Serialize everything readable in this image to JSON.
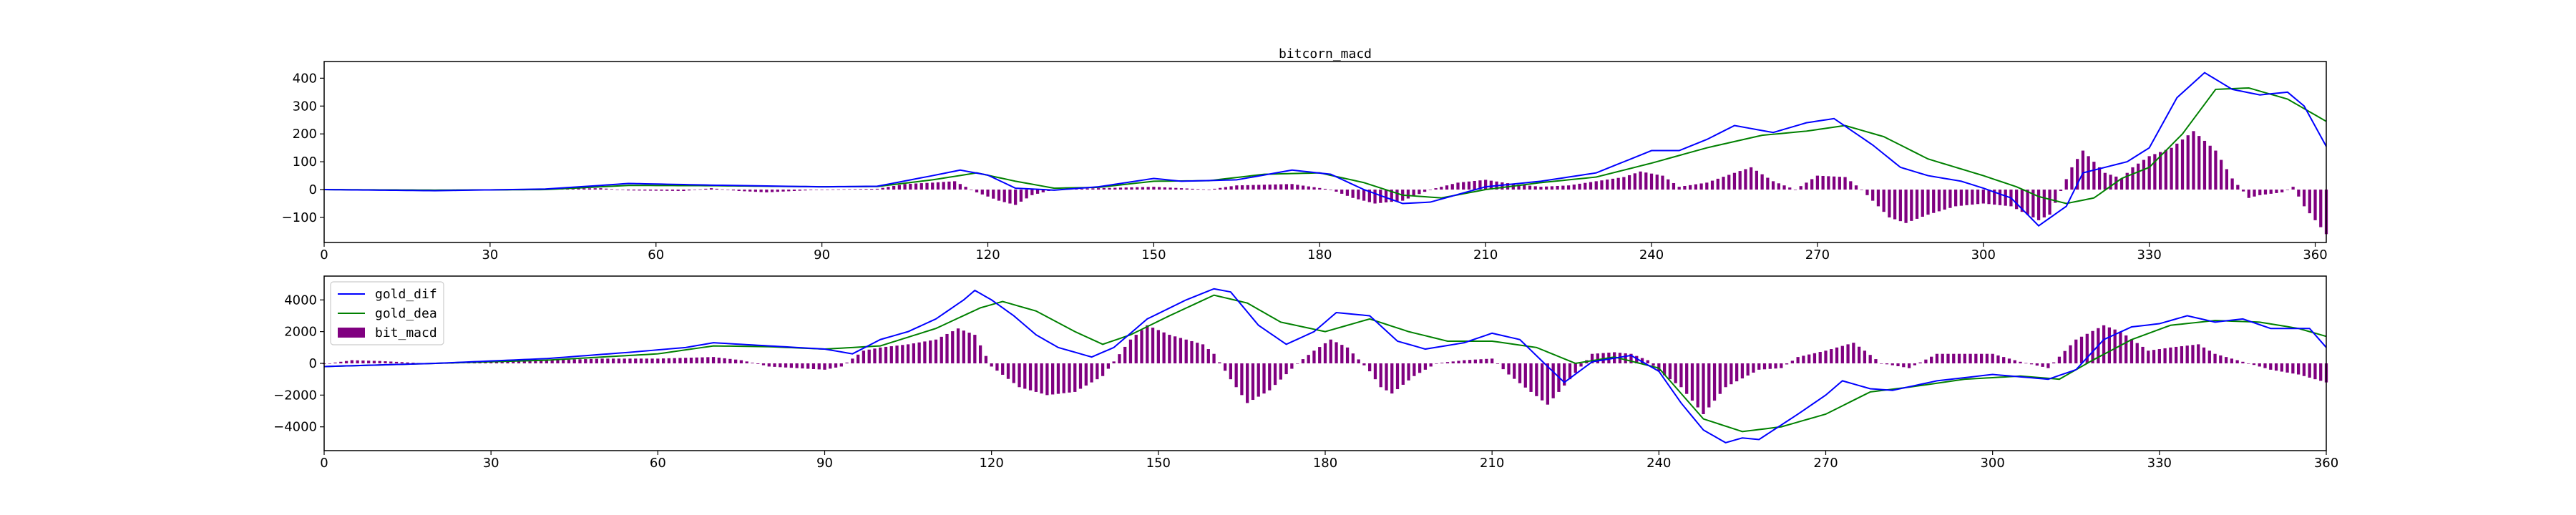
{
  "chart_data": [
    {
      "id": "bitcorn",
      "type": "line",
      "title": "bitcorn_macd",
      "xlabel": "",
      "ylabel": "",
      "xlim": [
        0,
        362
      ],
      "ylim": [
        -190,
        460
      ],
      "xticks": [
        0,
        30,
        60,
        90,
        120,
        150,
        180,
        210,
        240,
        270,
        300,
        330,
        360
      ],
      "yticks": [
        -100,
        0,
        100,
        200,
        300,
        400
      ],
      "grid": false,
      "legend": null,
      "colors": {
        "dif": "#0000ff",
        "dea": "#008000",
        "macd": "#800080"
      },
      "dif_keypoints": [
        [
          0,
          0
        ],
        [
          20,
          -4
        ],
        [
          40,
          2
        ],
        [
          50,
          15
        ],
        [
          55,
          22
        ],
        [
          70,
          16
        ],
        [
          90,
          10
        ],
        [
          100,
          12
        ],
        [
          110,
          50
        ],
        [
          115,
          70
        ],
        [
          120,
          52
        ],
        [
          125,
          5
        ],
        [
          132,
          -2
        ],
        [
          140,
          10
        ],
        [
          150,
          40
        ],
        [
          155,
          30
        ],
        [
          165,
          35
        ],
        [
          175,
          70
        ],
        [
          182,
          55
        ],
        [
          188,
          0
        ],
        [
          195,
          -50
        ],
        [
          200,
          -45
        ],
        [
          210,
          10
        ],
        [
          220,
          30
        ],
        [
          230,
          60
        ],
        [
          240,
          140
        ],
        [
          245,
          140
        ],
        [
          250,
          180
        ],
        [
          255,
          230
        ],
        [
          262,
          205
        ],
        [
          268,
          240
        ],
        [
          273,
          255
        ],
        [
          280,
          160
        ],
        [
          285,
          80
        ],
        [
          290,
          50
        ],
        [
          296,
          30
        ],
        [
          300,
          5
        ],
        [
          305,
          -30
        ],
        [
          310,
          -130
        ],
        [
          315,
          -60
        ],
        [
          318,
          60
        ],
        [
          322,
          80
        ],
        [
          326,
          100
        ],
        [
          330,
          150
        ],
        [
          335,
          330
        ],
        [
          340,
          420
        ],
        [
          345,
          360
        ],
        [
          350,
          340
        ],
        [
          355,
          350
        ],
        [
          358,
          300
        ],
        [
          362,
          155
        ]
      ],
      "dea_keypoints": [
        [
          0,
          0
        ],
        [
          20,
          -2
        ],
        [
          40,
          0
        ],
        [
          55,
          15
        ],
        [
          70,
          14
        ],
        [
          90,
          10
        ],
        [
          100,
          11
        ],
        [
          110,
          35
        ],
        [
          118,
          60
        ],
        [
          125,
          30
        ],
        [
          132,
          5
        ],
        [
          140,
          8
        ],
        [
          150,
          30
        ],
        [
          160,
          32
        ],
        [
          170,
          55
        ],
        [
          180,
          60
        ],
        [
          188,
          25
        ],
        [
          195,
          -20
        ],
        [
          202,
          -30
        ],
        [
          210,
          0
        ],
        [
          220,
          25
        ],
        [
          230,
          45
        ],
        [
          240,
          95
        ],
        [
          250,
          150
        ],
        [
          260,
          195
        ],
        [
          268,
          210
        ],
        [
          275,
          230
        ],
        [
          282,
          190
        ],
        [
          290,
          110
        ],
        [
          300,
          50
        ],
        [
          306,
          10
        ],
        [
          310,
          -25
        ],
        [
          315,
          -50
        ],
        [
          320,
          -30
        ],
        [
          325,
          40
        ],
        [
          330,
          80
        ],
        [
          336,
          200
        ],
        [
          342,
          360
        ],
        [
          348,
          365
        ],
        [
          355,
          325
        ],
        [
          362,
          245
        ]
      ],
      "macd_keypoints": [
        [
          0,
          0
        ],
        [
          20,
          -5
        ],
        [
          40,
          3
        ],
        [
          50,
          5
        ],
        [
          55,
          -3
        ],
        [
          65,
          -5
        ],
        [
          70,
          5
        ],
        [
          75,
          -5
        ],
        [
          80,
          -10
        ],
        [
          90,
          0
        ],
        [
          100,
          3
        ],
        [
          105,
          20
        ],
        [
          110,
          25
        ],
        [
          114,
          30
        ],
        [
          118,
          -10
        ],
        [
          122,
          -40
        ],
        [
          125,
          -55
        ],
        [
          128,
          -20
        ],
        [
          132,
          0
        ],
        [
          140,
          5
        ],
        [
          150,
          10
        ],
        [
          155,
          5
        ],
        [
          160,
          0
        ],
        [
          165,
          15
        ],
        [
          175,
          20
        ],
        [
          182,
          0
        ],
        [
          186,
          -30
        ],
        [
          190,
          -50
        ],
        [
          195,
          -40
        ],
        [
          200,
          0
        ],
        [
          205,
          25
        ],
        [
          210,
          35
        ],
        [
          215,
          20
        ],
        [
          220,
          10
        ],
        [
          225,
          15
        ],
        [
          230,
          30
        ],
        [
          235,
          45
        ],
        [
          238,
          65
        ],
        [
          242,
          50
        ],
        [
          245,
          10
        ],
        [
          250,
          25
        ],
        [
          255,
          60
        ],
        [
          258,
          80
        ],
        [
          262,
          30
        ],
        [
          266,
          0
        ],
        [
          270,
          50
        ],
        [
          275,
          45
        ],
        [
          278,
          0
        ],
        [
          283,
          -100
        ],
        [
          286,
          -120
        ],
        [
          290,
          -90
        ],
        [
          295,
          -60
        ],
        [
          300,
          -50
        ],
        [
          305,
          -60
        ],
        [
          310,
          -110
        ],
        [
          312,
          -90
        ],
        [
          316,
          80
        ],
        [
          318,
          140
        ],
        [
          320,
          100
        ],
        [
          322,
          60
        ],
        [
          325,
          40
        ],
        [
          327,
          80
        ],
        [
          330,
          120
        ],
        [
          334,
          150
        ],
        [
          338,
          210
        ],
        [
          342,
          140
        ],
        [
          345,
          40
        ],
        [
          348,
          -30
        ],
        [
          350,
          -20
        ],
        [
          354,
          -10
        ],
        [
          356,
          10
        ],
        [
          358,
          -60
        ],
        [
          362,
          -160
        ]
      ]
    },
    {
      "id": "gold",
      "type": "line",
      "title": "",
      "xlabel": "",
      "ylabel": "",
      "xlim": [
        0,
        360
      ],
      "ylim": [
        -5500,
        5500
      ],
      "xticks": [
        0,
        30,
        60,
        90,
        120,
        150,
        180,
        210,
        240,
        270,
        300,
        330,
        360
      ],
      "yticks": [
        -4000,
        -2000,
        0,
        2000,
        4000
      ],
      "grid": false,
      "legend": "top-left",
      "legend_entries": {
        "dif": "gold_dif",
        "dea": "gold_dea",
        "macd": "bit_macd"
      },
      "colors": {
        "dif": "#0000ff",
        "dea": "#008000",
        "macd": "#800080"
      },
      "dif_keypoints": [
        [
          0,
          -200
        ],
        [
          20,
          0
        ],
        [
          40,
          300
        ],
        [
          55,
          700
        ],
        [
          65,
          1000
        ],
        [
          70,
          1300
        ],
        [
          80,
          1100
        ],
        [
          90,
          900
        ],
        [
          95,
          600
        ],
        [
          100,
          1500
        ],
        [
          105,
          2000
        ],
        [
          110,
          2800
        ],
        [
          115,
          4000
        ],
        [
          117,
          4600
        ],
        [
          120,
          4000
        ],
        [
          124,
          3000
        ],
        [
          128,
          1800
        ],
        [
          132,
          1000
        ],
        [
          138,
          400
        ],
        [
          142,
          1000
        ],
        [
          148,
          2800
        ],
        [
          155,
          4000
        ],
        [
          160,
          4700
        ],
        [
          163,
          4500
        ],
        [
          168,
          2400
        ],
        [
          173,
          1200
        ],
        [
          178,
          2000
        ],
        [
          182,
          3200
        ],
        [
          188,
          3000
        ],
        [
          193,
          1400
        ],
        [
          198,
          900
        ],
        [
          205,
          1300
        ],
        [
          210,
          1900
        ],
        [
          215,
          1500
        ],
        [
          220,
          -200
        ],
        [
          223,
          -1200
        ],
        [
          228,
          100
        ],
        [
          235,
          500
        ],
        [
          240,
          -500
        ],
        [
          244,
          -2500
        ],
        [
          248,
          -4200
        ],
        [
          252,
          -5000
        ],
        [
          255,
          -4700
        ],
        [
          258,
          -4800
        ],
        [
          265,
          -3200
        ],
        [
          270,
          -2000
        ],
        [
          273,
          -1100
        ],
        [
          278,
          -1600
        ],
        [
          282,
          -1700
        ],
        [
          290,
          -1100
        ],
        [
          300,
          -700
        ],
        [
          310,
          -1000
        ],
        [
          315,
          -400
        ],
        [
          320,
          1500
        ],
        [
          325,
          2300
        ],
        [
          330,
          2500
        ],
        [
          335,
          3000
        ],
        [
          340,
          2600
        ],
        [
          345,
          2800
        ],
        [
          350,
          2200
        ],
        [
          357,
          2200
        ],
        [
          360,
          1000
        ]
      ],
      "dea_keypoints": [
        [
          0,
          -200
        ],
        [
          20,
          0
        ],
        [
          40,
          200
        ],
        [
          60,
          600
        ],
        [
          70,
          1100
        ],
        [
          80,
          1050
        ],
        [
          90,
          900
        ],
        [
          100,
          1100
        ],
        [
          110,
          2200
        ],
        [
          118,
          3500
        ],
        [
          122,
          3900
        ],
        [
          128,
          3300
        ],
        [
          135,
          2000
        ],
        [
          140,
          1200
        ],
        [
          145,
          1800
        ],
        [
          152,
          3000
        ],
        [
          160,
          4300
        ],
        [
          166,
          3800
        ],
        [
          172,
          2600
        ],
        [
          180,
          2000
        ],
        [
          188,
          2800
        ],
        [
          195,
          2000
        ],
        [
          202,
          1400
        ],
        [
          210,
          1400
        ],
        [
          218,
          1000
        ],
        [
          225,
          0
        ],
        [
          232,
          400
        ],
        [
          240,
          -300
        ],
        [
          248,
          -3500
        ],
        [
          255,
          -4300
        ],
        [
          262,
          -4000
        ],
        [
          270,
          -3200
        ],
        [
          278,
          -1800
        ],
        [
          285,
          -1500
        ],
        [
          295,
          -1000
        ],
        [
          305,
          -800
        ],
        [
          312,
          -1000
        ],
        [
          318,
          200
        ],
        [
          325,
          1500
        ],
        [
          332,
          2400
        ],
        [
          340,
          2700
        ],
        [
          348,
          2600
        ],
        [
          355,
          2200
        ],
        [
          360,
          1700
        ]
      ],
      "macd_keypoints": [
        [
          0,
          -50
        ],
        [
          5,
          200
        ],
        [
          10,
          150
        ],
        [
          20,
          -30
        ],
        [
          30,
          100
        ],
        [
          40,
          200
        ],
        [
          50,
          300
        ],
        [
          60,
          300
        ],
        [
          70,
          400
        ],
        [
          75,
          200
        ],
        [
          80,
          -200
        ],
        [
          85,
          -300
        ],
        [
          90,
          -400
        ],
        [
          93,
          -200
        ],
        [
          97,
          800
        ],
        [
          100,
          1000
        ],
        [
          105,
          1200
        ],
        [
          110,
          1500
        ],
        [
          114,
          2200
        ],
        [
          117,
          1800
        ],
        [
          120,
          -200
        ],
        [
          125,
          -1500
        ],
        [
          130,
          -2000
        ],
        [
          135,
          -1800
        ],
        [
          140,
          -800
        ],
        [
          145,
          1500
        ],
        [
          148,
          2400
        ],
        [
          152,
          1800
        ],
        [
          158,
          1200
        ],
        [
          160,
          600
        ],
        [
          163,
          -1000
        ],
        [
          166,
          -2500
        ],
        [
          170,
          -1700
        ],
        [
          175,
          0
        ],
        [
          178,
          800
        ],
        [
          181,
          1500
        ],
        [
          184,
          1000
        ],
        [
          188,
          -500
        ],
        [
          190,
          -1500
        ],
        [
          192,
          -1900
        ],
        [
          196,
          -800
        ],
        [
          200,
          0
        ],
        [
          205,
          200
        ],
        [
          210,
          300
        ],
        [
          213,
          -700
        ],
        [
          217,
          -1800
        ],
        [
          220,
          -2600
        ],
        [
          224,
          -1000
        ],
        [
          228,
          600
        ],
        [
          232,
          700
        ],
        [
          235,
          600
        ],
        [
          238,
          200
        ],
        [
          240,
          -500
        ],
        [
          244,
          -1500
        ],
        [
          248,
          -3200
        ],
        [
          252,
          -1500
        ],
        [
          258,
          -400
        ],
        [
          262,
          -300
        ],
        [
          265,
          400
        ],
        [
          270,
          800
        ],
        [
          275,
          1300
        ],
        [
          277,
          800
        ],
        [
          280,
          0
        ],
        [
          285,
          -300
        ],
        [
          290,
          600
        ],
        [
          295,
          600
        ],
        [
          300,
          600
        ],
        [
          305,
          100
        ],
        [
          310,
          -300
        ],
        [
          315,
          1500
        ],
        [
          320,
          2400
        ],
        [
          323,
          2000
        ],
        [
          328,
          800
        ],
        [
          332,
          1000
        ],
        [
          337,
          1200
        ],
        [
          340,
          600
        ],
        [
          345,
          100
        ],
        [
          350,
          -400
        ],
        [
          355,
          -700
        ],
        [
          360,
          -1200
        ]
      ]
    }
  ]
}
